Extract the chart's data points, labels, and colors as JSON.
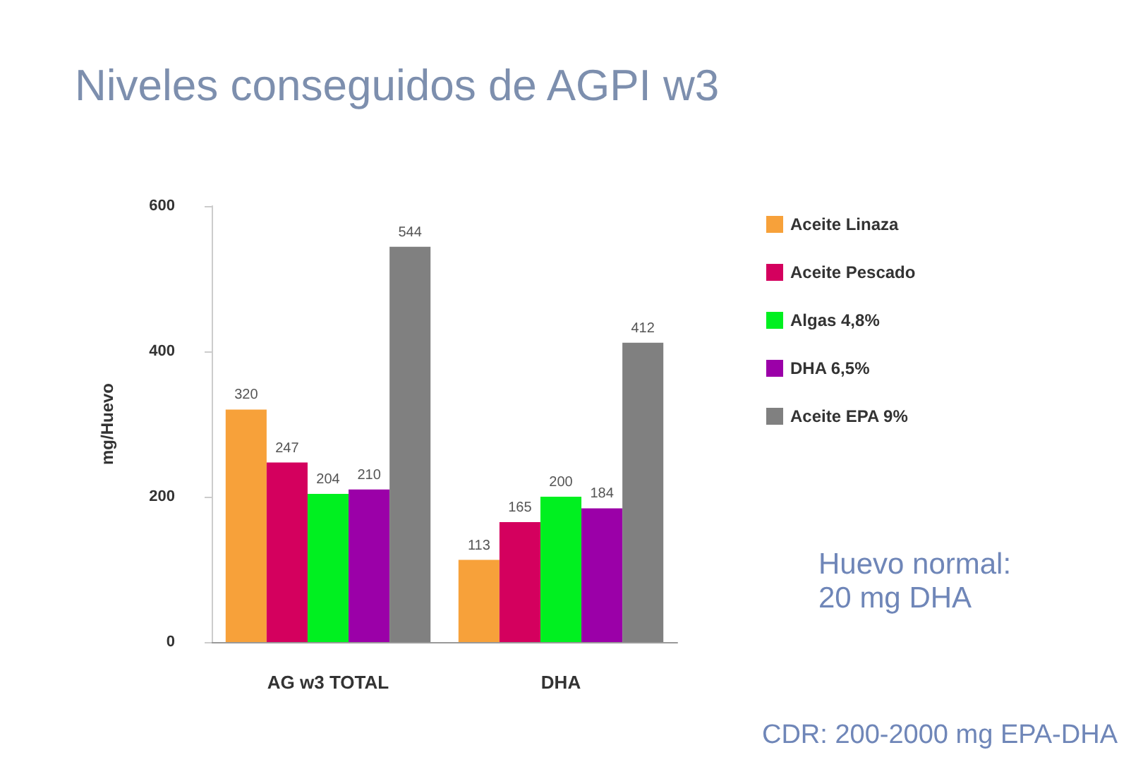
{
  "chart_data": {
    "type": "bar",
    "title": "Niveles conseguidos de AGPI w3",
    "ylabel": "mg/Huevo",
    "categories": [
      "AG w3 TOTAL",
      "DHA"
    ],
    "series": [
      {
        "name": "Aceite Linaza",
        "color": "#f7a13a",
        "values": [
          320,
          113
        ]
      },
      {
        "name": "Aceite Pescado",
        "color": "#d4005e",
        "values": [
          247,
          165
        ]
      },
      {
        "name": "Algas 4,8%",
        "color": "#00f020",
        "values": [
          204,
          200
        ]
      },
      {
        "name": "DHA 6,5%",
        "color": "#9b00a8",
        "values": [
          210,
          184
        ]
      },
      {
        "name": "Aceite EPA 9%",
        "color": "#808080",
        "values": [
          544,
          412
        ]
      }
    ],
    "ylim": [
      0,
      600
    ],
    "yticks": [
      0,
      200,
      400,
      600
    ],
    "grid": false,
    "legend": "right",
    "data_labels": true,
    "annotations": [
      "Huevo normal:\n20 mg DHA",
      "CDR: 200-2000 mg EPA-DHA"
    ]
  }
}
